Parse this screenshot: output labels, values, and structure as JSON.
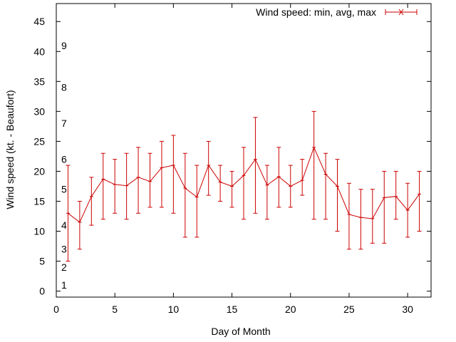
{
  "chart_data": {
    "type": "line",
    "title": "",
    "xlabel": "Day of Month",
    "ylabel": "Wind speed (kt. - Beaufort)",
    "xlim": [
      0,
      32
    ],
    "ylim": [
      -1,
      48
    ],
    "xticks": [
      0,
      5,
      10,
      15,
      20,
      25,
      30
    ],
    "yticks": [
      0,
      5,
      10,
      15,
      20,
      25,
      30,
      35,
      40,
      45
    ],
    "grid": false,
    "legend_position": "top-right",
    "colors": {
      "series": "#cc0000",
      "frame": "#000000"
    },
    "beaufort_labels": [
      {
        "label": "1",
        "y": 1
      },
      {
        "label": "2",
        "y": 4
      },
      {
        "label": "3",
        "y": 7
      },
      {
        "label": "4",
        "y": 11
      },
      {
        "label": "5",
        "y": 17
      },
      {
        "label": "6",
        "y": 22
      },
      {
        "label": "7",
        "y": 28
      },
      {
        "label": "8",
        "y": 34
      },
      {
        "label": "9",
        "y": 41
      }
    ],
    "series": [
      {
        "name": "Wind speed: min, avg, max",
        "x": [
          1,
          2,
          3,
          4,
          5,
          6,
          7,
          8,
          9,
          10,
          11,
          12,
          13,
          14,
          15,
          16,
          17,
          18,
          19,
          20,
          21,
          22,
          23,
          24,
          25,
          26,
          27,
          28,
          29,
          30,
          31
        ],
        "avg": [
          13,
          11.5,
          15.8,
          18.7,
          17.8,
          17.6,
          19,
          18.3,
          20.6,
          21,
          17.2,
          15.7,
          21,
          18.2,
          17.5,
          19.3,
          22,
          17.7,
          19.1,
          17.5,
          18.5,
          24,
          19.5,
          17.5,
          12.8,
          12.3,
          12.1,
          15.6,
          15.8,
          13.5,
          16.2
        ],
        "min": [
          5,
          7,
          11,
          12,
          13,
          12,
          13,
          14,
          14,
          13,
          9,
          9,
          16,
          15,
          14,
          12,
          13,
          12,
          14,
          14,
          16,
          12,
          12,
          10,
          7,
          7,
          8,
          8,
          12,
          9,
          10
        ],
        "max": [
          21,
          15,
          19,
          23,
          22,
          23,
          24,
          23,
          25,
          26,
          23,
          21,
          25,
          21,
          20,
          24,
          29,
          21,
          24,
          21,
          22,
          30,
          23,
          22,
          18,
          17,
          17,
          20,
          20,
          18,
          20
        ]
      }
    ]
  }
}
